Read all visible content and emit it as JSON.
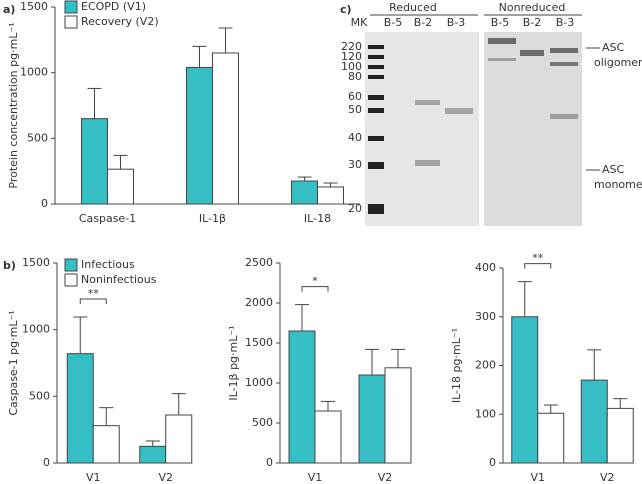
{
  "chart_data": [
    {
      "type": "bar",
      "panel": "a)",
      "ylabel": "Protein concentration pg·mL⁻¹",
      "categories": [
        "Caspase-1",
        "IL-1β",
        "IL-18"
      ],
      "series": [
        {
          "name": "ECOPD (V1)",
          "color": "#35bfc4",
          "values": [
            650,
            1040,
            175
          ],
          "errors": [
            230,
            160,
            30
          ]
        },
        {
          "name": "Recovery (V2)",
          "color": "#ffffff",
          "values": [
            265,
            1150,
            130
          ],
          "errors": [
            105,
            190,
            30
          ]
        }
      ],
      "ylim": [
        0,
        1500
      ],
      "yticks": [
        0,
        500,
        1000,
        1500
      ]
    },
    {
      "type": "bar",
      "panel": "b)",
      "ylabel": "Caspase-1 pg·mL⁻¹",
      "categories": [
        "V1",
        "V2"
      ],
      "series": [
        {
          "name": "Infectious",
          "color": "#35bfc4",
          "values": [
            820,
            125
          ],
          "errors": [
            275,
            40
          ]
        },
        {
          "name": "Noninfectious",
          "color": "#ffffff",
          "values": [
            280,
            360
          ],
          "errors": [
            135,
            160
          ]
        }
      ],
      "ylim": [
        0,
        1500
      ],
      "yticks": [
        0,
        500,
        1000,
        1500
      ],
      "significance": "**"
    },
    {
      "type": "bar",
      "ylabel": "IL-1β pg·mL⁻¹",
      "categories": [
        "V1",
        "V2"
      ],
      "series": [
        {
          "color": "#35bfc4",
          "values": [
            1650,
            1100
          ],
          "errors": [
            330,
            320
          ]
        },
        {
          "color": "#ffffff",
          "values": [
            650,
            1190
          ],
          "errors": [
            120,
            230
          ]
        }
      ],
      "ylim": [
        0,
        2500
      ],
      "yticks": [
        0,
        500,
        1000,
        1500,
        2000,
        2500
      ],
      "significance": "*"
    },
    {
      "type": "bar",
      "ylabel": "IL-18 pg·mL⁻¹",
      "categories": [
        "V1",
        "V2"
      ],
      "series": [
        {
          "color": "#35bfc4",
          "values": [
            300,
            170
          ],
          "errors": [
            72,
            62
          ]
        },
        {
          "color": "#ffffff",
          "values": [
            102,
            112
          ],
          "errors": [
            17,
            20
          ]
        }
      ],
      "ylim": [
        0,
        400
      ],
      "yticks": [
        0,
        100,
        200,
        300,
        400
      ],
      "significance": "**"
    }
  ],
  "blot": {
    "panel": "c)",
    "groups": [
      "Reduced",
      "Nonreduced"
    ],
    "lanes": [
      "MK",
      "B-5",
      "B-2",
      "B-3",
      "B-5",
      "B-2",
      "B-3"
    ],
    "markers": [
      220,
      120,
      100,
      80,
      60,
      50,
      40,
      30,
      20
    ],
    "oligomer": [
      "ASC",
      "oligomer"
    ],
    "monomer": [
      "ASC",
      "monomer"
    ]
  }
}
